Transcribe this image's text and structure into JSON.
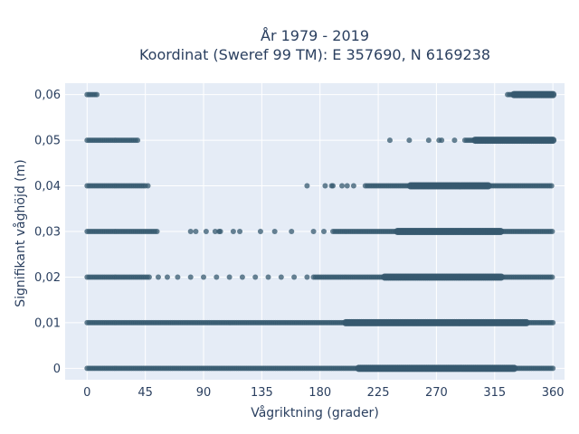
{
  "chart_data": {
    "type": "scatter",
    "title": [
      "År 1979 - 2019",
      "Koordinat (Sweref 99 TM): E 357690, N 6169238"
    ],
    "xlabel": "Vågriktning (grader)",
    "ylabel": "Signifikant våghöjd (m)",
    "xlim": [
      -17,
      369
    ],
    "ylim": [
      -0.0025,
      0.0625
    ],
    "xticks": [
      0,
      45,
      90,
      135,
      180,
      225,
      270,
      315,
      360
    ],
    "xtick_labels": [
      "0",
      "45",
      "90",
      "135",
      "180",
      "225",
      "270",
      "315",
      "360"
    ],
    "yticks": [
      0,
      0.01,
      0.02,
      0.03,
      0.04,
      0.05,
      0.06
    ],
    "ytick_labels": [
      "0",
      "0,01",
      "0,02",
      "0,03",
      "0,04",
      "0,05",
      "0,06"
    ],
    "grid": true,
    "marker_color": "#36596f",
    "plot_bg": "#e5ecf6",
    "levels": [
      {
        "y": 0.0,
        "ranges": [
          [
            0,
            360
          ]
        ],
        "dense": [
          [
            210,
            330
          ]
        ],
        "scatter": []
      },
      {
        "y": 0.01,
        "ranges": [
          [
            0,
            360
          ]
        ],
        "dense": [
          [
            200,
            340
          ]
        ],
        "scatter": []
      },
      {
        "y": 0.02,
        "ranges": [
          [
            0,
            48
          ],
          [
            175,
            360
          ]
        ],
        "dense": [
          [
            230,
            320
          ]
        ],
        "scatter": [
          55,
          62,
          70,
          80,
          90,
          100,
          110,
          120,
          130,
          140,
          150,
          160,
          170
        ]
      },
      {
        "y": 0.03,
        "ranges": [
          [
            0,
            55
          ],
          [
            190,
            360
          ]
        ],
        "dense": [
          [
            240,
            320
          ]
        ],
        "scatter": [
          80,
          84,
          92,
          99,
          102,
          103,
          113,
          118,
          134,
          145,
          158,
          175,
          183
        ]
      },
      {
        "y": 0.04,
        "ranges": [
          [
            0,
            45
          ],
          [
            215,
            360
          ]
        ],
        "dense": [
          [
            250,
            310
          ]
        ],
        "scatter": [
          47,
          170,
          184,
          189,
          190,
          197,
          201,
          206
        ]
      },
      {
        "y": 0.05,
        "ranges": [
          [
            0,
            38
          ],
          [
            292,
            360
          ]
        ],
        "dense": [
          [
            300,
            360
          ]
        ],
        "scatter": [
          39,
          234,
          249,
          264,
          272,
          274,
          284
        ]
      },
      {
        "y": 0.06,
        "ranges": [
          [
            0,
            8
          ],
          [
            325,
            360
          ]
        ],
        "dense": [
          [
            330,
            360
          ]
        ],
        "scatter": []
      }
    ]
  }
}
